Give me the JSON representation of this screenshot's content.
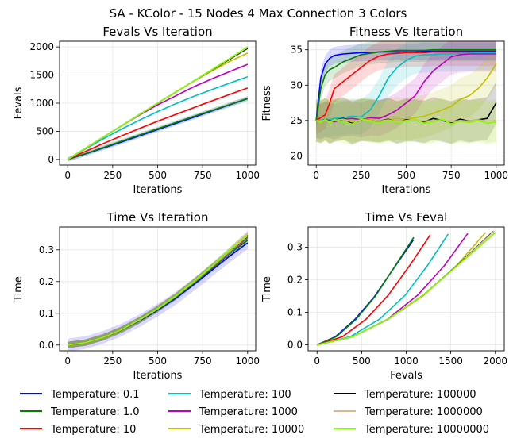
{
  "figure": {
    "suptitle": "SA - KColor - 15 Nodes 4 Max Connection 3 Colors"
  },
  "legend": {
    "placement": "bottom",
    "entries": [
      {
        "label": "Temperature: 0.1",
        "color": "#0000ff"
      },
      {
        "label": "Temperature: 1.0",
        "color": "#008000"
      },
      {
        "label": "Temperature: 10",
        "color": "#ff0000"
      },
      {
        "label": "Temperature: 100",
        "color": "#00bfbf"
      },
      {
        "label": "Temperature: 1000",
        "color": "#bf00bf"
      },
      {
        "label": "Temperature: 10000",
        "color": "#bfbf00"
      },
      {
        "label": "Temperature: 100000",
        "color": "#000000"
      },
      {
        "label": "Temperature: 1000000",
        "color": "#deb887"
      },
      {
        "label": "Temperature: 10000000",
        "color": "#7fff00"
      }
    ]
  },
  "chart_data": [
    {
      "type": "line",
      "title": "Fevals Vs Iteration",
      "xlabel": "Iterations",
      "ylabel": "Fevals",
      "xlim": [
        -45,
        1045
      ],
      "ylim": [
        -100,
        2100
      ],
      "xticks": [
        0,
        250,
        500,
        750,
        1000
      ],
      "yticks": [
        0,
        500,
        1000,
        1500,
        2000
      ],
      "grid": true,
      "x": [
        0,
        100,
        200,
        300,
        400,
        500,
        600,
        700,
        800,
        900,
        1000
      ],
      "series": [
        {
          "name": "Temperature: 0.1",
          "color": "#0000ff",
          "values": [
            0,
            100,
            205,
            310,
            420,
            530,
            640,
            750,
            860,
            970,
            1080
          ],
          "band": 40
        },
        {
          "name": "Temperature: 1.0",
          "color": "#008000",
          "values": [
            0,
            105,
            215,
            325,
            435,
            545,
            655,
            765,
            870,
            975,
            1085
          ],
          "band": 40
        },
        {
          "name": "Temperature: 10",
          "color": "#ff0000",
          "values": [
            0,
            145,
            285,
            420,
            550,
            680,
            800,
            920,
            1040,
            1155,
            1270
          ],
          "band": 15
        },
        {
          "name": "Temperature: 100",
          "color": "#00bfbf",
          "values": [
            0,
            190,
            370,
            540,
            700,
            850,
            990,
            1120,
            1240,
            1355,
            1470
          ],
          "band": 15
        },
        {
          "name": "Temperature: 1000",
          "color": "#bf00bf",
          "values": [
            0,
            200,
            400,
            600,
            790,
            970,
            1130,
            1290,
            1430,
            1560,
            1690
          ],
          "band": 15
        },
        {
          "name": "Temperature: 10000",
          "color": "#bfbf00",
          "values": [
            0,
            200,
            400,
            600,
            800,
            1000,
            1200,
            1390,
            1570,
            1740,
            1890
          ],
          "band": 15
        },
        {
          "name": "Temperature: 100000",
          "color": "#000000",
          "values": [
            0,
            200,
            400,
            600,
            800,
            1000,
            1195,
            1390,
            1585,
            1780,
            1975
          ],
          "band": 10
        },
        {
          "name": "Temperature: 1000000",
          "color": "#deb887",
          "values": [
            0,
            200,
            400,
            600,
            800,
            1000,
            1195,
            1390,
            1590,
            1790,
            1990
          ],
          "band": 10
        },
        {
          "name": "Temperature: 10000000",
          "color": "#7fff00",
          "values": [
            0,
            200,
            400,
            600,
            800,
            1000,
            1200,
            1395,
            1595,
            1795,
            2000
          ],
          "band": 10
        }
      ]
    },
    {
      "type": "line",
      "title": "Fitness Vs Iteration",
      "xlabel": "Iterations",
      "ylabel": "Fitness",
      "xlim": [
        -45,
        1045
      ],
      "ylim": [
        18.7,
        36.2
      ],
      "xticks": [
        0,
        250,
        500,
        750,
        1000
      ],
      "yticks": [
        20,
        25,
        30,
        35
      ],
      "grid": true,
      "x": [
        0,
        25,
        50,
        75,
        100,
        150,
        200,
        250,
        300,
        350,
        400,
        450,
        500,
        550,
        600,
        650,
        700,
        750,
        800,
        850,
        900,
        950,
        1000
      ],
      "series": [
        {
          "name": "Temperature: 0.1",
          "color": "#0000ff",
          "values": [
            25,
            31,
            33,
            33.8,
            34.2,
            34.4,
            34.5,
            34.6,
            34.6,
            34.7,
            34.7,
            34.7,
            34.7,
            34.7,
            34.8,
            34.8,
            34.8,
            34.8,
            34.8,
            34.8,
            34.8,
            34.8,
            34.8
          ],
          "band": 1.2
        },
        {
          "name": "Temperature: 1.0",
          "color": "#008000",
          "values": [
            25,
            29.5,
            31.5,
            32.2,
            32.5,
            33.3,
            33.8,
            34.3,
            34.5,
            34.7,
            34.8,
            34.9,
            34.9,
            34.9,
            34.9,
            35.0,
            35.0,
            35.0,
            35.0,
            35.0,
            35.0,
            35.0,
            35.0
          ],
          "band": 1.6
        },
        {
          "name": "Temperature: 10",
          "color": "#ff0000",
          "values": [
            25,
            25.4,
            25.8,
            27.5,
            29.5,
            30.5,
            31.5,
            32.5,
            33.5,
            34.1,
            34.4,
            34.5,
            34.6,
            34.6,
            34.6,
            34.7,
            34.7,
            34.7,
            34.7,
            34.7,
            34.7,
            34.7,
            34.7
          ],
          "band": 2.0
        },
        {
          "name": "Temperature: 100",
          "color": "#00bfbf",
          "values": [
            25,
            25,
            25.2,
            25.1,
            25.3,
            25.4,
            25.6,
            25.5,
            26.5,
            28.5,
            31,
            32.5,
            33.5,
            34.1,
            34.3,
            34.3,
            34.4,
            34.4,
            34.5,
            34.5,
            34.6,
            34.6,
            34.6
          ],
          "band": 2.5
        },
        {
          "name": "Temperature: 1000",
          "color": "#bf00bf",
          "values": [
            25,
            24.8,
            25.1,
            25.0,
            24.8,
            25.2,
            25.3,
            25.1,
            25.4,
            25.3,
            25.8,
            26.5,
            27.5,
            28.5,
            30.5,
            32,
            33,
            34,
            34.3,
            34.4,
            34.4,
            34.4,
            34.4
          ],
          "band": 2.5
        },
        {
          "name": "Temperature: 10000",
          "color": "#bfbf00",
          "values": [
            25,
            24.9,
            25.1,
            24.8,
            25.0,
            25.2,
            24.9,
            25.1,
            25.2,
            24.8,
            25.1,
            25.3,
            25.2,
            25.4,
            25.6,
            26,
            26.5,
            27,
            28,
            28.5,
            29.5,
            31,
            33
          ],
          "band": 3.0
        },
        {
          "name": "Temperature: 100000",
          "color": "#000000",
          "values": [
            25,
            24.8,
            25.2,
            24.7,
            25.0,
            25.3,
            24.6,
            25.1,
            25.0,
            24.9,
            25.2,
            24.7,
            25.1,
            25.0,
            24.8,
            25.3,
            25.0,
            24.7,
            25.2,
            24.9,
            25.1,
            25.3,
            27.5
          ],
          "band": 3.0
        },
        {
          "name": "Temperature: 1000000",
          "color": "#deb887",
          "values": [
            25,
            24.9,
            25.1,
            24.8,
            25.0,
            25.2,
            24.8,
            25.1,
            25.0,
            24.9,
            25.1,
            24.8,
            25.0,
            25.1,
            24.9,
            25.0,
            25.1,
            24.8,
            25.0,
            24.9,
            25.1,
            24.9,
            25.0
          ],
          "band": 3.0
        },
        {
          "name": "Temperature: 10000000",
          "color": "#7fff00",
          "values": [
            25,
            24.7,
            25.2,
            24.6,
            25.1,
            24.8,
            24.5,
            25.2,
            24.9,
            24.6,
            25.0,
            24.7,
            24.9,
            25.1,
            24.6,
            24.8,
            25.2,
            24.5,
            24.9,
            24.7,
            25.0,
            24.6,
            24.8
          ],
          "band": 3.0
        }
      ]
    },
    {
      "type": "line",
      "title": "Time Vs Iteration",
      "xlabel": "Iterations",
      "ylabel": "Time",
      "xlim": [
        -45,
        1045
      ],
      "ylim": [
        -0.018,
        0.372
      ],
      "xticks": [
        0,
        250,
        500,
        750,
        1000
      ],
      "yticks": [
        0.0,
        0.1,
        0.2,
        0.3
      ],
      "grid": true,
      "x": [
        0,
        100,
        200,
        300,
        400,
        500,
        600,
        700,
        800,
        900,
        1000
      ],
      "series": [
        {
          "name": "Temperature: 0.1",
          "color": "#0000ff",
          "values": [
            0,
            0.008,
            0.025,
            0.048,
            0.077,
            0.11,
            0.147,
            0.19,
            0.235,
            0.28,
            0.322
          ],
          "band": 0.02
        },
        {
          "name": "Temperature: 1.0",
          "color": "#008000",
          "values": [
            0,
            0.008,
            0.025,
            0.048,
            0.078,
            0.112,
            0.15,
            0.194,
            0.24,
            0.288,
            0.33
          ],
          "band": 0.01
        },
        {
          "name": "Temperature: 10",
          "color": "#ff0000",
          "values": [
            0,
            0.008,
            0.025,
            0.049,
            0.079,
            0.114,
            0.153,
            0.197,
            0.244,
            0.29,
            0.338
          ],
          "band": 0.01
        },
        {
          "name": "Temperature: 100",
          "color": "#00bfbf",
          "values": [
            0,
            0.008,
            0.025,
            0.049,
            0.079,
            0.114,
            0.153,
            0.197,
            0.244,
            0.29,
            0.34
          ],
          "band": 0.01
        },
        {
          "name": "Temperature: 1000",
          "color": "#bf00bf",
          "values": [
            0,
            0.008,
            0.025,
            0.049,
            0.079,
            0.114,
            0.153,
            0.197,
            0.244,
            0.292,
            0.342
          ],
          "band": 0.01
        },
        {
          "name": "Temperature: 10000",
          "color": "#bfbf00",
          "values": [
            0,
            0.008,
            0.025,
            0.049,
            0.079,
            0.114,
            0.153,
            0.197,
            0.245,
            0.294,
            0.345
          ],
          "band": 0.01
        },
        {
          "name": "Temperature: 100000",
          "color": "#000000",
          "values": [
            0,
            0.008,
            0.025,
            0.049,
            0.079,
            0.115,
            0.154,
            0.199,
            0.247,
            0.297,
            0.348
          ],
          "band": 0.01
        },
        {
          "name": "Temperature: 1000000",
          "color": "#deb887",
          "values": [
            0,
            0.008,
            0.025,
            0.049,
            0.079,
            0.115,
            0.154,
            0.199,
            0.247,
            0.297,
            0.35
          ],
          "band": 0.01
        },
        {
          "name": "Temperature: 10000000",
          "color": "#7fff00",
          "values": [
            0,
            0.008,
            0.025,
            0.049,
            0.08,
            0.115,
            0.155,
            0.2,
            0.248,
            0.298,
            0.345
          ],
          "band": 0.01
        }
      ]
    },
    {
      "type": "line",
      "title": "Time Vs Feval",
      "xlabel": "Fevals",
      "ylabel": "Time",
      "xlim": [
        -100,
        2100
      ],
      "ylim": [
        -0.018,
        0.362
      ],
      "xticks": [
        0,
        500,
        1000,
        1500,
        2000
      ],
      "yticks": [
        0.0,
        0.1,
        0.2,
        0.3
      ],
      "grid": true,
      "series": [
        {
          "name": "Temperature: 0.1",
          "color": "#0000ff",
          "x": [
            0,
            205,
            420,
            640,
            860,
            1080
          ],
          "values": [
            0,
            0.025,
            0.077,
            0.147,
            0.235,
            0.322
          ]
        },
        {
          "name": "Temperature: 1.0",
          "color": "#008000",
          "x": [
            0,
            215,
            435,
            655,
            870,
            1085
          ],
          "values": [
            0,
            0.025,
            0.078,
            0.15,
            0.24,
            0.33
          ]
        },
        {
          "name": "Temperature: 10",
          "color": "#ff0000",
          "x": [
            0,
            285,
            550,
            800,
            1040,
            1270
          ],
          "values": [
            0,
            0.025,
            0.079,
            0.153,
            0.244,
            0.338
          ]
        },
        {
          "name": "Temperature: 100",
          "color": "#00bfbf",
          "x": [
            0,
            370,
            700,
            990,
            1240,
            1470
          ],
          "values": [
            0,
            0.025,
            0.079,
            0.153,
            0.244,
            0.34
          ]
        },
        {
          "name": "Temperature: 1000",
          "color": "#bf00bf",
          "x": [
            0,
            400,
            790,
            1130,
            1430,
            1690
          ],
          "values": [
            0,
            0.025,
            0.079,
            0.153,
            0.244,
            0.342
          ]
        },
        {
          "name": "Temperature: 10000",
          "color": "#bfbf00",
          "x": [
            0,
            400,
            800,
            1200,
            1570,
            1890
          ],
          "values": [
            0,
            0.025,
            0.079,
            0.153,
            0.245,
            0.345
          ]
        },
        {
          "name": "Temperature: 100000",
          "color": "#000000",
          "x": [
            0,
            400,
            800,
            1195,
            1585,
            1975
          ],
          "values": [
            0,
            0.025,
            0.079,
            0.154,
            0.247,
            0.348
          ]
        },
        {
          "name": "Temperature: 1000000",
          "color": "#deb887",
          "x": [
            0,
            400,
            800,
            1195,
            1590,
            1990
          ],
          "values": [
            0,
            0.025,
            0.079,
            0.154,
            0.247,
            0.35
          ]
        },
        {
          "name": "Temperature: 10000000",
          "color": "#7fff00",
          "x": [
            0,
            400,
            800,
            1200,
            1595,
            2000
          ],
          "values": [
            0,
            0.025,
            0.08,
            0.155,
            0.248,
            0.345
          ]
        }
      ]
    }
  ]
}
